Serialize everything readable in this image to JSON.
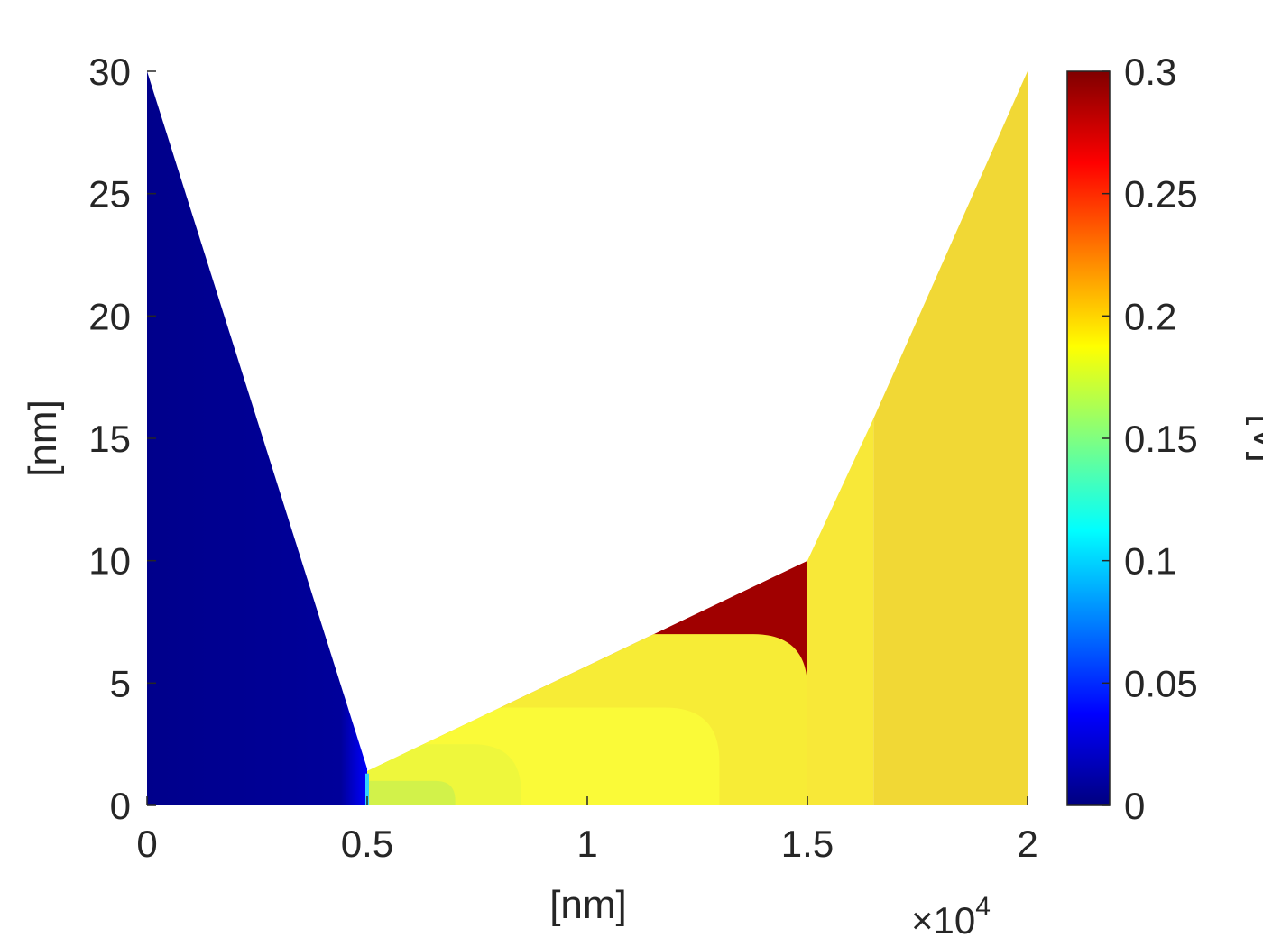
{
  "chart_data": {
    "type": "heatmap",
    "title": "",
    "xlabel": "[nm]",
    "ylabel": "[nm]",
    "xlim": [
      0,
      20000
    ],
    "ylim": [
      0,
      30
    ],
    "x_ticks": [
      0,
      5000,
      10000,
      15000,
      20000
    ],
    "x_tick_labels": [
      "0",
      "0.5",
      "1",
      "1.5",
      "2"
    ],
    "x_exponent_label": "×10",
    "x_exponent_power": "4",
    "y_ticks": [
      0,
      5,
      10,
      15,
      20,
      25,
      30
    ],
    "y_tick_labels": [
      "0",
      "5",
      "10",
      "15",
      "20",
      "25",
      "30"
    ],
    "colorbar": {
      "label": "[V]",
      "colormap": "jet",
      "clim": [
        0,
        0.3
      ],
      "ticks": [
        0,
        0.05,
        0.1,
        0.15,
        0.2,
        0.25,
        0.3
      ],
      "tick_labels": [
        "0",
        "0.05",
        "0.1",
        "0.15",
        "0.2",
        "0.25",
        "0.3"
      ]
    },
    "grid": false,
    "domain_regions": [
      {
        "name": "left-electrode",
        "polygon": [
          [
            0,
            0
          ],
          [
            0,
            30
          ],
          [
            5000,
            1.5
          ],
          [
            5000,
            0
          ]
        ],
        "value": 0.0,
        "color": "#00008b"
      },
      {
        "name": "channel",
        "polygon": [
          [
            5000,
            0
          ],
          [
            5000,
            1.4
          ],
          [
            15000,
            10
          ],
          [
            15000,
            0
          ]
        ],
        "value_range": [
          0.17,
          0.3
        ],
        "contours": [
          {
            "x1": 5000,
            "x2": 7000,
            "ytop": 1.0,
            "value": 0.17,
            "color": "#d2f24a"
          },
          {
            "x1": 5000,
            "x2": 8500,
            "ytop": 2.5,
            "value": 0.185,
            "color": "#eef73c"
          },
          {
            "x1": 5000,
            "x2": 13000,
            "ytop": 4.0,
            "value": 0.195,
            "color": "#fafa38"
          },
          {
            "x1": 5000,
            "x2": 15000,
            "ytop": 7.0,
            "value": 0.2,
            "color": "#f7ec36"
          }
        ],
        "top_edge_value": 0.29
      },
      {
        "name": "right-electrode-inner",
        "polygon": [
          [
            15000,
            0
          ],
          [
            15000,
            10
          ],
          [
            16500,
            15.8
          ],
          [
            16500,
            0
          ]
        ],
        "value": 0.195,
        "color": "#f8e838"
      },
      {
        "name": "right-electrode-outer",
        "polygon": [
          [
            16500,
            0
          ],
          [
            16500,
            15.8
          ],
          [
            20000,
            30
          ],
          [
            20000,
            0
          ]
        ],
        "value": 0.2,
        "color": "#f1d835"
      }
    ]
  }
}
